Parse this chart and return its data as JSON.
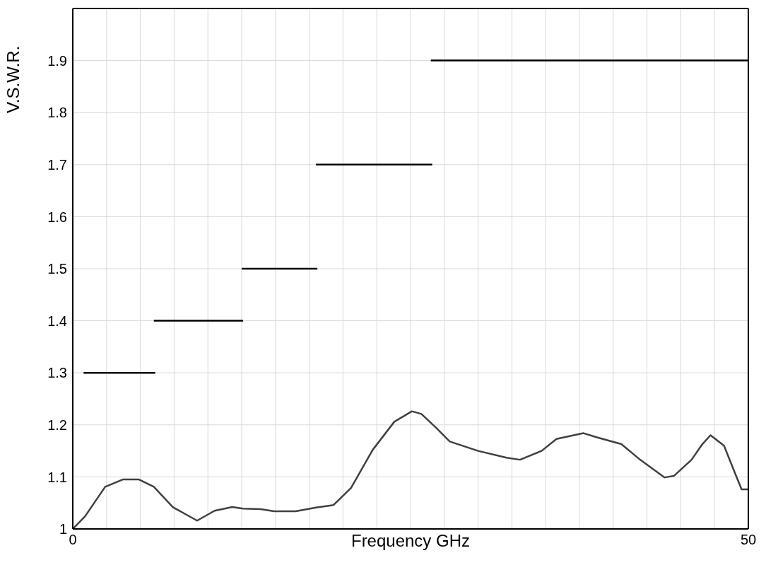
{
  "chart_data": {
    "type": "line",
    "xlabel": "Frequency GHz",
    "ylabel": "V.S.W.R.",
    "xlim": [
      0,
      50
    ],
    "ylim": [
      1,
      2
    ],
    "xticks": [
      0,
      {
        "value": 2.5,
        "label": null
      },
      {
        "value": 5,
        "label": null
      },
      {
        "value": 7.5,
        "label": null
      },
      {
        "value": 10,
        "label": null
      },
      {
        "value": 12.5,
        "label": null
      },
      {
        "value": 15,
        "label": null
      },
      {
        "value": 17.5,
        "label": null
      },
      {
        "value": 20,
        "label": null
      },
      {
        "value": 22.5,
        "label": null
      },
      {
        "value": 25,
        "label": null
      },
      {
        "value": 27.5,
        "label": null
      },
      {
        "value": 30,
        "label": null
      },
      {
        "value": 32.5,
        "label": null
      },
      {
        "value": 35,
        "label": null
      },
      {
        "value": 37.5,
        "label": null
      },
      {
        "value": 40,
        "label": null
      },
      {
        "value": 42.5,
        "label": null
      },
      {
        "value": 45,
        "label": null
      },
      {
        "value": 47.5,
        "label": null
      },
      50
    ],
    "yticks": [
      1,
      1.1,
      1.2,
      1.3,
      1.4,
      1.5,
      1.6,
      1.7,
      1.8,
      1.9,
      {
        "value": 2,
        "label": null
      }
    ],
    "grid": true,
    "line_style": "solid",
    "series": [
      {
        "color": "#404040",
        "x": [
          0,
          0.9,
          2.4,
          3.7,
          4.9,
          6.0,
          7.4,
          9.2,
          10.5,
          11.8,
          12.6,
          13.9,
          14.9,
          16.5,
          18.0,
          19.3,
          20.6,
          22.2,
          23.8,
          25.1,
          25.8,
          26.9,
          27.9,
          30.0,
          32.1,
          33.1,
          34.7,
          35.8,
          37.8,
          38.8,
          40.6,
          41.9,
          43.8,
          44.5,
          45.8,
          46.6,
          47.2,
          48.2,
          49.0,
          49.5,
          50
        ],
        "values": [
          1.0,
          1.024,
          1.081,
          1.095,
          1.095,
          1.081,
          1.042,
          1.016,
          1.035,
          1.042,
          1.039,
          1.038,
          1.034,
          1.034,
          1.041,
          1.046,
          1.079,
          1.152,
          1.206,
          1.226,
          1.221,
          1.194,
          1.168,
          1.15,
          1.137,
          1.133,
          1.15,
          1.173,
          1.184,
          1.176,
          1.163,
          1.135,
          1.099,
          1.102,
          1.133,
          1.163,
          1.18,
          1.16,
          1.108,
          1.076,
          1.076
        ]
      },
      {
        "color": "#000000",
        "x": [
          0.8,
          6.1
        ],
        "values": [
          1.3,
          1.3
        ]
      },
      {
        "color": "#000000",
        "x": [
          6.0,
          12.6
        ],
        "values": [
          1.4,
          1.4
        ]
      },
      {
        "color": "#000000",
        "x": [
          12.5,
          18.1
        ],
        "values": [
          1.5,
          1.5
        ]
      },
      {
        "color": "#000000",
        "x": [
          18.0,
          26.6
        ],
        "values": [
          1.7,
          1.7
        ]
      },
      {
        "color": "#000000",
        "x": [
          26.5,
          50
        ],
        "values": [
          1.9,
          1.9
        ]
      }
    ]
  }
}
